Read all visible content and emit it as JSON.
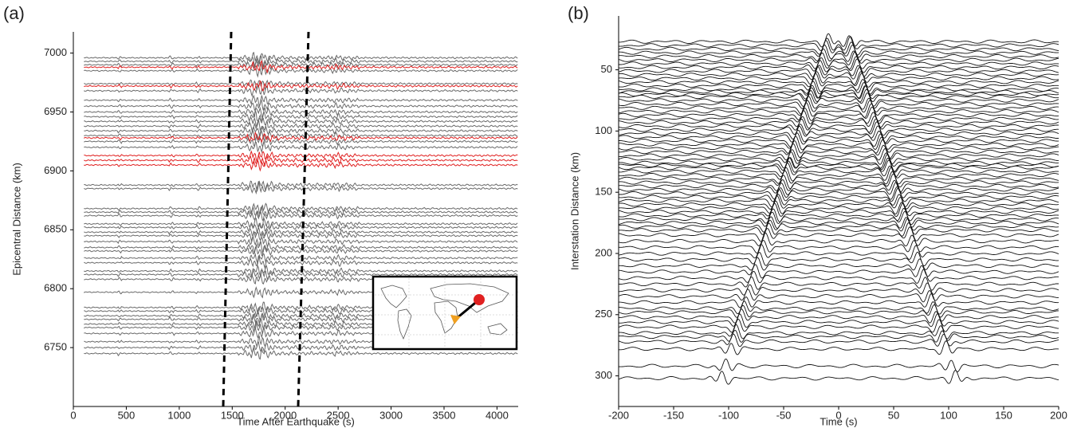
{
  "chart_data": [
    {
      "type": "wiggle",
      "panel": "(a)",
      "x_label": "Time After Earthquake (s)",
      "y_label": "Epicentral Distance (km)",
      "xlim": [
        0,
        4200
      ],
      "ylim": [
        6700,
        7018
      ],
      "xticks": [
        0,
        500,
        1000,
        1500,
        2000,
        2500,
        3000,
        3500,
        4000
      ],
      "yticks": [
        6750,
        6800,
        6850,
        6900,
        6950,
        7000
      ],
      "series": [
        {
          "color": "#6a6a6a",
          "values": [
            6996,
            6993,
            6990,
            6985,
            6974,
            6968,
            6960,
            6955,
            6950,
            6946,
            6942,
            6938,
            6934,
            6930,
            6925,
            6920,
            6888,
            6885,
            6868,
            6865,
            6862,
            6855,
            6852,
            6848,
            6845,
            6840,
            6835,
            6832,
            6826,
            6822,
            6815,
            6812,
            6808,
            6797,
            6784,
            6781,
            6777,
            6774,
            6770,
            6767,
            6762,
            6755,
            6750,
            6745
          ]
        },
        {
          "color": "#e02020",
          "values": [
            6988,
            6972,
            6928,
            6913,
            6909,
            6905
          ]
        }
      ]
    },
    {
      "type": "wiggle",
      "panel": "(b)",
      "x_label": "Time (s)",
      "y_label": "Interstation Distance (km)",
      "xlim": [
        -200,
        200
      ],
      "ylim": [
        325,
        6
      ],
      "xticks": [
        -200,
        -150,
        -100,
        -50,
        0,
        50,
        100,
        150,
        200
      ],
      "yticks": [
        50,
        100,
        150,
        200,
        250,
        300
      ],
      "series": [
        {
          "color": "#111111",
          "values": [
            27,
            30,
            33,
            36,
            39,
            42,
            45,
            48,
            51,
            54,
            57,
            60,
            63,
            66,
            68,
            70,
            72,
            75,
            78,
            81,
            84,
            87,
            90,
            93,
            96,
            99,
            102,
            105,
            108,
            111,
            114,
            117,
            120,
            123,
            126,
            128,
            130,
            133,
            136,
            139,
            142,
            145,
            148,
            151,
            154,
            157,
            160,
            163,
            166,
            169,
            172,
            175,
            178,
            181,
            185,
            190,
            195,
            200,
            205,
            210,
            215,
            220,
            225,
            230,
            235,
            240,
            245,
            248,
            252,
            256,
            260,
            265,
            268,
            272,
            278,
            292,
            302
          ]
        }
      ]
    }
  ]
}
